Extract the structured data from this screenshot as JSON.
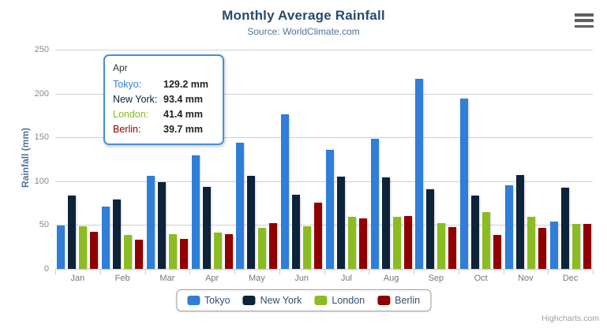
{
  "chart_data": {
    "type": "bar",
    "title": "Monthly Average Rainfall",
    "subtitle": "Source: WorldClimate.com",
    "categories": [
      "Jan",
      "Feb",
      "Mar",
      "Apr",
      "May",
      "Jun",
      "Jul",
      "Aug",
      "Sep",
      "Oct",
      "Nov",
      "Dec"
    ],
    "series": [
      {
        "name": "Tokyo",
        "color": "#2f7ed8",
        "values": [
          49.9,
          71.5,
          106.4,
          129.2,
          144.0,
          176.0,
          135.6,
          148.5,
          216.4,
          194.1,
          95.6,
          54.4
        ]
      },
      {
        "name": "New York",
        "color": "#0d233a",
        "values": [
          83.6,
          78.8,
          98.5,
          93.4,
          106.0,
          84.5,
          105.0,
          104.3,
          91.2,
          83.5,
          106.6,
          92.3
        ]
      },
      {
        "name": "London",
        "color": "#8bbc21",
        "values": [
          48.9,
          38.8,
          39.3,
          41.4,
          47.0,
          48.3,
          59.0,
          59.6,
          52.4,
          65.2,
          59.3,
          51.2
        ]
      },
      {
        "name": "Berlin",
        "color": "#910000",
        "values": [
          42.4,
          33.2,
          34.5,
          39.7,
          52.6,
          75.5,
          57.4,
          60.4,
          47.6,
          39.1,
          46.8,
          51.1
        ]
      }
    ],
    "xlabel": "",
    "ylabel": "Rainfall (mm)",
    "ylim": [
      0,
      250
    ],
    "yticks": [
      0,
      50,
      100,
      150,
      200,
      250
    ],
    "unit": "mm",
    "grid": true,
    "legend_position": "bottom-center"
  },
  "tooltip": {
    "header": "Apr",
    "border_color": "#4790d8",
    "rows": [
      {
        "label": "Tokyo:",
        "value": "129.2 mm",
        "color": "#2f7ed8"
      },
      {
        "label": "New York:",
        "value": "93.4 mm",
        "color": "#0d233a"
      },
      {
        "label": "London:",
        "value": "41.4 mm",
        "color": "#8bbc21"
      },
      {
        "label": "Berlin:",
        "value": "39.7 mm",
        "color": "#910000"
      }
    ]
  },
  "credits": "Highcharts.com",
  "icons": {
    "context_menu": "hamburger-icon"
  },
  "colors": {
    "title": "#274b6d",
    "subtitle": "#4d759e",
    "axis_label": "#888888",
    "grid_line": "#d0d0d0",
    "axis_line": "#c0d0e0"
  }
}
